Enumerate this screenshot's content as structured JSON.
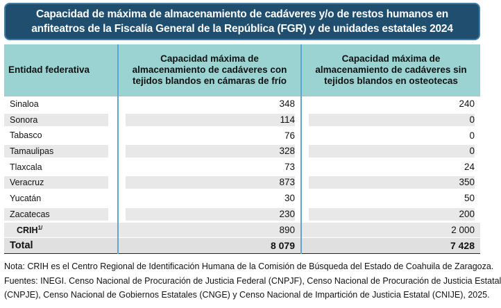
{
  "title": "Capacidad de máxima de almacenamiento de cadáveres y/o de restos humanos en anfiteatros de la Fiscalía General de la República (FGR) y de unidades estatales 2024",
  "headers": {
    "entity": "Entidad federativa",
    "col1": "Capacidad máxima de almacenamiento de cadáveres con tejidos blandos en cámaras de frío",
    "col2": "Capacidad máxima de almacenamiento de cadáveres sin tejidos blandos en osteotecas"
  },
  "rows": [
    {
      "entity": "Sinaloa",
      "frio": "348",
      "osteotecas": "240"
    },
    {
      "entity": "Sonora",
      "frio": "114",
      "osteotecas": "0"
    },
    {
      "entity": "Tabasco",
      "frio": "76",
      "osteotecas": "0"
    },
    {
      "entity": "Tamaulipas",
      "frio": "328",
      "osteotecas": "0"
    },
    {
      "entity": "Tlaxcala",
      "frio": "73",
      "osteotecas": "24"
    },
    {
      "entity": "Veracruz",
      "frio": "873",
      "osteotecas": "350"
    },
    {
      "entity": "Yucatán",
      "frio": "30",
      "osteotecas": "50"
    },
    {
      "entity": "Zacatecas",
      "frio": "230",
      "osteotecas": "200"
    }
  ],
  "crih": {
    "entity": "CRIH",
    "footnote_mark": "1/",
    "frio": "890",
    "osteotecas": "2 000"
  },
  "total": {
    "label": "Total",
    "frio": "8 079",
    "osteotecas": "7 428"
  },
  "notes": {
    "line1": "Nota: CRIH es el Centro Regional de Identificación Humana de la Comisión de Búsqueda del Estado de Coahuila de Zaragoza.",
    "line2": "Fuentes: INEGI. Censo Nacional de Procuración de Justicia Federal (CNPJF), Censo Nacional de Procuración de Justicia Estatal",
    "line3": "(CNPJE), Censo Nacional de Gobiernos Estatales (CNGE) y Censo Nacional de Impartición de Justicia Estatal (CNIJE), 2025."
  }
}
